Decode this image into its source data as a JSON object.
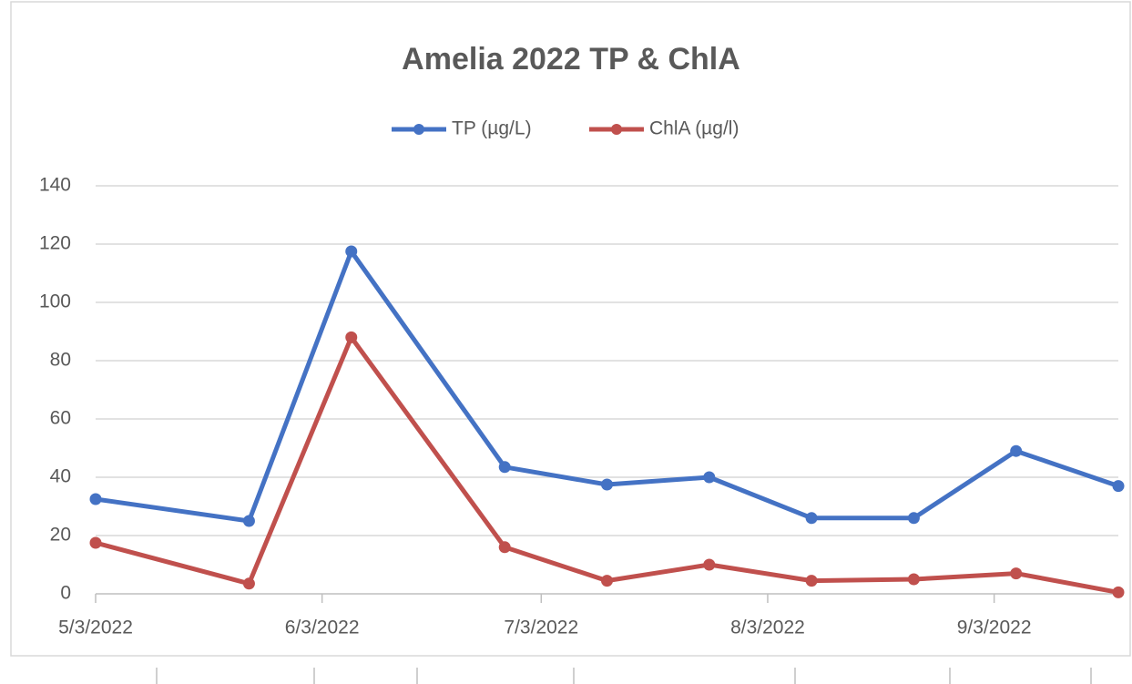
{
  "chart_data": {
    "type": "line",
    "title": "Amelia 2022 TP & ChlA",
    "x": [
      "2022-05-03",
      "2022-05-24",
      "2022-06-07",
      "2022-06-28",
      "2022-07-12",
      "2022-07-26",
      "2022-08-09",
      "2022-08-23",
      "2022-09-06",
      "2022-09-20"
    ],
    "series": [
      {
        "name": "TP (µg/L)",
        "color": "#4472c4",
        "values": [
          32.5,
          25,
          117.5,
          43.5,
          37.5,
          40,
          26,
          26,
          49,
          37
        ]
      },
      {
        "name": "ChlA (µg/l)",
        "color": "#c0504d",
        "values": [
          17.5,
          3.5,
          88,
          16,
          4.5,
          10,
          4.5,
          5,
          7,
          0.5
        ]
      }
    ],
    "xlim": [
      "2022-05-03",
      "2022-09-20"
    ],
    "xticks": [
      {
        "value": "2022-05-03",
        "label": "5/3/2022"
      },
      {
        "value": "2022-06-03",
        "label": "6/3/2022"
      },
      {
        "value": "2022-07-03",
        "label": "7/3/2022"
      },
      {
        "value": "2022-08-03",
        "label": "8/3/2022"
      },
      {
        "value": "2022-09-03",
        "label": "9/3/2022"
      }
    ],
    "ylim": [
      0,
      140
    ],
    "yticks": [
      0,
      20,
      40,
      60,
      80,
      100,
      120,
      140
    ],
    "grid": true,
    "legend": "top"
  }
}
